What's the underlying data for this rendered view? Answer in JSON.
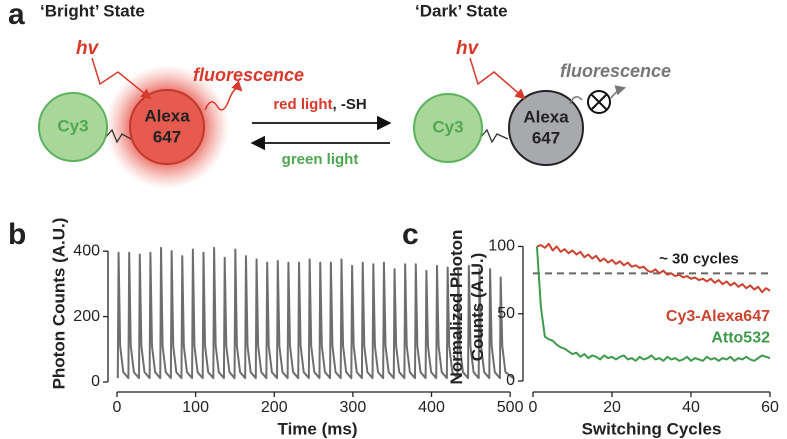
{
  "panels": [
    "a",
    "b",
    "c"
  ],
  "diagram": {
    "bright_state": "‘Bright’ State",
    "dark_state": "‘Dark’ State",
    "left": {
      "hv": "hv",
      "fluorescence": "fluorescence",
      "donor": "Cy3",
      "acceptor": [
        "Alexa",
        "647"
      ]
    },
    "right": {
      "hv": "hv",
      "fluorescence": "fluorescence",
      "donor": "Cy3",
      "acceptor": [
        "Alexa",
        "647"
      ]
    },
    "forward": [
      "red light",
      ", -SH"
    ],
    "backward": "green light"
  },
  "chart_data": [
    {
      "type": "line",
      "xlabel": "Time (ms)",
      "ylabel": [
        "Photon Counts (A.U.)"
      ],
      "xlim": [
        0,
        510
      ],
      "ylim": [
        0,
        480
      ],
      "xticks": [
        0,
        100,
        200,
        300,
        400,
        500
      ],
      "yticks": [
        0,
        200,
        400
      ],
      "x": [
        1,
        2,
        4,
        8,
        14.5,
        15.5,
        17.5,
        21.5,
        28,
        29,
        31,
        35,
        41.5,
        42.5,
        44.5,
        48.5,
        55,
        56,
        58,
        62,
        68.5,
        69.5,
        71.5,
        75.5,
        82,
        83,
        85,
        89,
        95.5,
        96.5,
        98.5,
        102.5,
        109,
        110,
        112,
        116,
        122.5,
        123.5,
        125.5,
        129.5,
        136,
        137,
        139,
        143,
        149.5,
        150.5,
        152.5,
        156.5,
        163,
        164,
        166,
        170,
        176.5,
        177.5,
        179.5,
        183.5,
        190,
        191,
        193,
        197,
        203.5,
        204.5,
        206.5,
        210.5,
        217,
        218,
        220,
        224,
        230.5,
        231.5,
        233.5,
        237.5,
        244,
        245,
        247,
        251,
        257.5,
        258.5,
        260.5,
        264.5,
        271,
        272,
        274,
        278,
        284.5,
        285.5,
        287.5,
        291.5,
        298,
        299,
        301,
        305,
        311.5,
        312.5,
        314.5,
        318.5,
        325,
        326,
        328,
        332,
        338.5,
        339.5,
        341.5,
        345.5,
        352,
        353,
        355,
        359,
        365.5,
        366.5,
        368.5,
        372.5,
        379,
        380,
        382,
        386,
        392.5,
        393.5,
        395.5,
        399.5,
        406,
        407,
        409,
        413,
        419.5,
        420.5,
        422.5,
        426.5,
        433,
        434,
        436,
        440,
        446.5,
        447.5,
        449.5,
        453.5,
        460,
        461,
        463,
        467,
        473.5,
        474.5,
        476.5,
        480.5,
        487,
        488,
        490,
        494,
        505
      ],
      "series": [
        {
          "color": "#6d6e70",
          "values": [
            12,
            395,
            110,
            30,
            12,
            395,
            110,
            30,
            12,
            390,
            110,
            30,
            12,
            395,
            110,
            30,
            12,
            410,
            110,
            30,
            12,
            400,
            110,
            30,
            12,
            385,
            110,
            30,
            12,
            405,
            110,
            30,
            12,
            395,
            110,
            30,
            12,
            410,
            110,
            30,
            12,
            380,
            110,
            30,
            12,
            405,
            110,
            30,
            12,
            385,
            110,
            30,
            12,
            375,
            110,
            30,
            12,
            365,
            110,
            30,
            12,
            370,
            110,
            30,
            12,
            365,
            110,
            30,
            12,
            365,
            110,
            30,
            12,
            375,
            110,
            30,
            12,
            365,
            110,
            30,
            12,
            365,
            110,
            30,
            12,
            375,
            110,
            30,
            12,
            355,
            110,
            30,
            12,
            365,
            110,
            30,
            12,
            360,
            110,
            30,
            12,
            365,
            110,
            30,
            12,
            345,
            110,
            30,
            12,
            360,
            110,
            30,
            12,
            360,
            110,
            30,
            12,
            340,
            110,
            30,
            12,
            355,
            110,
            30,
            12,
            350,
            110,
            30,
            12,
            340,
            110,
            30,
            12,
            355,
            110,
            30,
            12,
            345,
            110,
            30,
            12,
            345,
            110,
            30,
            12,
            320,
            110,
            30,
            10
          ]
        }
      ]
    },
    {
      "type": "line",
      "xlabel": "Switching Cycles",
      "ylabel": [
        "Normalized Photon",
        "Counts (A.U.)"
      ],
      "xlim": [
        0,
        60
      ],
      "ylim": [
        0,
        110
      ],
      "xticks": [
        0,
        20,
        40,
        60
      ],
      "yticks": [
        0,
        50,
        100
      ],
      "reference_line": {
        "value": 80,
        "label": "~ 30 cycles"
      },
      "x": [
        1,
        2,
        3,
        4,
        5,
        6,
        7,
        8,
        9,
        10,
        11,
        12,
        13,
        14,
        15,
        16,
        17,
        18,
        19,
        20,
        21,
        22,
        23,
        24,
        25,
        26,
        27,
        28,
        29,
        30,
        31,
        32,
        33,
        34,
        35,
        36,
        37,
        38,
        39,
        40,
        41,
        42,
        43,
        44,
        45,
        46,
        47,
        48,
        49,
        50,
        51,
        52,
        53,
        54,
        55,
        56,
        57,
        58,
        59,
        60
      ],
      "series": [
        {
          "name": "Cy3-Alexa647",
          "color": "#c9432f",
          "values": [
            100,
            101,
            99,
            102,
            97,
            100,
            96,
            98,
            95,
            97,
            94,
            96,
            92,
            94,
            91,
            93,
            89,
            91,
            88,
            90,
            87,
            89,
            86,
            88,
            85,
            86,
            84,
            85,
            82,
            81,
            83,
            80,
            82,
            79,
            80,
            78,
            79,
            77,
            78,
            76,
            77,
            75,
            76,
            74,
            76,
            73,
            75,
            72,
            74,
            71,
            73,
            70,
            72,
            69,
            71,
            68,
            70,
            66,
            69,
            67
          ]
        },
        {
          "name": "Atto532",
          "color": "#3f9b4c",
          "values": [
            100,
            55,
            33,
            31,
            30,
            27,
            25,
            24,
            22,
            20,
            21,
            18,
            20,
            17,
            19,
            18,
            16,
            19,
            17,
            18,
            16,
            18,
            19,
            16,
            17,
            15,
            18,
            16,
            17,
            19,
            16,
            17,
            15,
            18,
            16,
            17,
            15,
            16,
            18,
            15,
            17,
            16,
            15,
            18,
            16,
            17,
            15,
            17,
            16,
            18,
            15,
            17,
            16,
            18,
            16,
            15,
            17,
            19,
            18,
            17
          ]
        }
      ]
    }
  ]
}
